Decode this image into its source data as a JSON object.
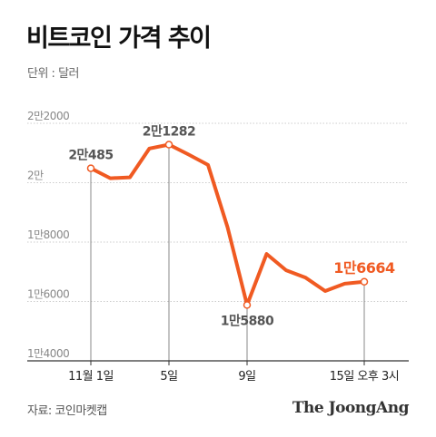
{
  "header": {
    "title": "비트코인 가격 추이",
    "unit": "단위 : 달러"
  },
  "footer": {
    "source": "자료: 코인마켓캡",
    "brand": "The JoongAng"
  },
  "colors": {
    "line": "#F05A22",
    "grid": "#cccccc",
    "axis": "#333333",
    "drop": "#888888",
    "marker_fill": "#ffffff"
  },
  "chart_data": {
    "type": "line",
    "title": "비트코인 가격 추이",
    "ylabel": "단위 : 달러",
    "ylim": [
      14000,
      22000
    ],
    "grid": true,
    "yticks": [
      {
        "value": 22000,
        "label": "2만2000"
      },
      {
        "value": 20000,
        "label": "2만"
      },
      {
        "value": 18000,
        "label": "1만8000"
      },
      {
        "value": 16000,
        "label": "1만6000"
      },
      {
        "value": 14000,
        "label": "1만4000"
      }
    ],
    "xticks": [
      {
        "index": 0,
        "label": "11월 1일"
      },
      {
        "index": 4,
        "label": "5일"
      },
      {
        "index": 8,
        "label": "9일"
      },
      {
        "index": 14,
        "label": "15일 오후 3시"
      }
    ],
    "series": [
      {
        "values": [
          20485,
          20150,
          20180,
          21150,
          21282,
          20950,
          20600,
          18500,
          15880,
          17600,
          17050,
          16800,
          16350,
          16600,
          16664
        ]
      }
    ],
    "annotations": [
      {
        "index": 0,
        "label": "2만485",
        "highlight": false
      },
      {
        "index": 4,
        "label": "2만1282",
        "highlight": false
      },
      {
        "index": 8,
        "label": "1만5880",
        "highlight": false,
        "below": true
      },
      {
        "index": 14,
        "label": "1만6664",
        "highlight": true
      }
    ]
  }
}
